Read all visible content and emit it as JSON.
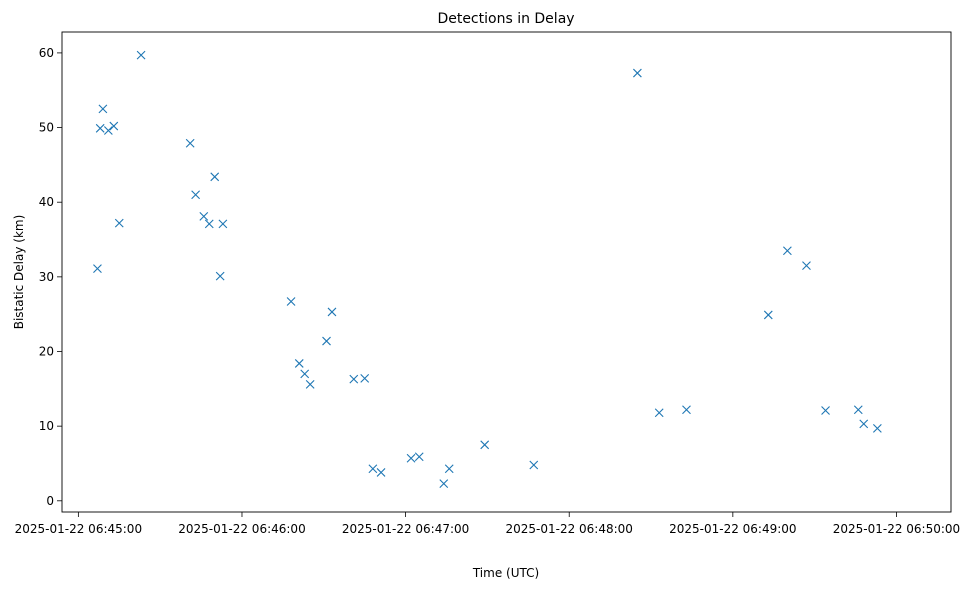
{
  "chart_data": {
    "type": "scatter",
    "title": "Detections in Delay",
    "xlabel": "Time (UTC)",
    "ylabel": "Bistatic Delay (km)",
    "xlim": [
      "2025-01-22 06:44:54",
      "2025-01-22 06:50:20"
    ],
    "ylim": [
      -1.5,
      62.8
    ],
    "x_ticks": [
      "2025-01-22 06:45:00",
      "2025-01-22 06:46:00",
      "2025-01-22 06:47:00",
      "2025-01-22 06:48:00",
      "2025-01-22 06:49:00",
      "2025-01-22 06:50:00"
    ],
    "y_ticks": [
      "0",
      "10",
      "20",
      "30",
      "40",
      "50",
      "60"
    ],
    "marker": "x",
    "color": "#1f77b4",
    "grid": false,
    "series": [
      {
        "x": [
          "2025-01-22 06:45:07",
          "2025-01-22 06:45:08",
          "2025-01-22 06:45:09",
          "2025-01-22 06:45:11",
          "2025-01-22 06:45:13",
          "2025-01-22 06:45:15",
          "2025-01-22 06:45:23",
          "2025-01-22 06:45:41",
          "2025-01-22 06:45:43",
          "2025-01-22 06:45:46",
          "2025-01-22 06:45:48",
          "2025-01-22 06:45:50",
          "2025-01-22 06:45:52",
          "2025-01-22 06:45:53",
          "2025-01-22 06:46:18",
          "2025-01-22 06:46:21",
          "2025-01-22 06:46:23",
          "2025-01-22 06:46:25",
          "2025-01-22 06:46:31",
          "2025-01-22 06:46:33",
          "2025-01-22 06:46:41",
          "2025-01-22 06:46:45",
          "2025-01-22 06:46:48",
          "2025-01-22 06:46:51",
          "2025-01-22 06:47:02",
          "2025-01-22 06:47:05",
          "2025-01-22 06:47:14",
          "2025-01-22 06:47:16",
          "2025-01-22 06:47:29",
          "2025-01-22 06:47:47",
          "2025-01-22 06:48:25",
          "2025-01-22 06:48:33",
          "2025-01-22 06:48:43",
          "2025-01-22 06:49:13",
          "2025-01-22 06:49:20",
          "2025-01-22 06:49:27",
          "2025-01-22 06:49:34",
          "2025-01-22 06:49:46",
          "2025-01-22 06:49:48",
          "2025-01-22 06:49:53"
        ],
        "y": [
          31.1,
          49.9,
          52.5,
          49.6,
          50.2,
          37.2,
          59.7,
          47.9,
          41.0,
          38.1,
          37.1,
          43.4,
          30.1,
          37.1,
          26.7,
          18.4,
          17.0,
          15.6,
          21.4,
          25.3,
          16.3,
          16.4,
          4.3,
          3.8,
          5.7,
          5.9,
          2.3,
          4.3,
          7.5,
          4.8,
          57.3,
          11.8,
          12.2,
          24.9,
          33.5,
          31.5,
          12.1,
          12.2,
          10.3,
          9.7
        ]
      }
    ]
  }
}
